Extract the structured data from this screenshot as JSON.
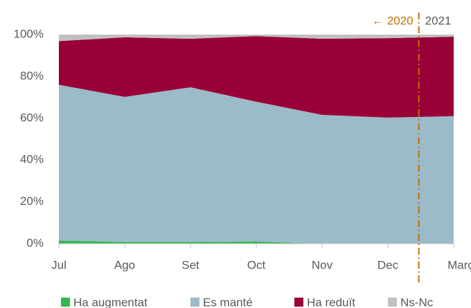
{
  "chart_data": {
    "type": "stacked_area",
    "categories": [
      "Jul",
      "Ago",
      "Set",
      "Oct",
      "Nov",
      "Dec",
      "Març"
    ],
    "series": [
      {
        "name": "Ha augmentat",
        "color": "#2fb84f",
        "values": [
          1.5,
          0.8,
          0.8,
          1,
          0,
          0,
          0
        ]
      },
      {
        "name": "Es manté",
        "color": "#9bbbc8",
        "values": [
          74.5,
          69.4,
          74,
          66.9,
          61.6,
          60.3,
          61
        ]
      },
      {
        "name": "Ha reduït",
        "color": "#990038",
        "values": [
          20.9,
          28.5,
          23.2,
          31.4,
          36.4,
          38,
          38
        ]
      },
      {
        "name": "Ns-Nc",
        "color": "#c0c0c0",
        "values": [
          3.1,
          1.3,
          2,
          0.7,
          2,
          1.7,
          1
        ]
      }
    ],
    "ylim": [
      0,
      100
    ],
    "yticks": [
      {
        "value": 0,
        "label": "0%"
      },
      {
        "value": 20,
        "label": "20%"
      },
      {
        "value": 40,
        "label": "40%"
      },
      {
        "value": 60,
        "label": "60%"
      },
      {
        "value": 80,
        "label": "80%"
      },
      {
        "value": 100,
        "label": "100%"
      }
    ],
    "annotations": [
      "← 2020",
      "2021"
    ],
    "legend": "bottom"
  }
}
